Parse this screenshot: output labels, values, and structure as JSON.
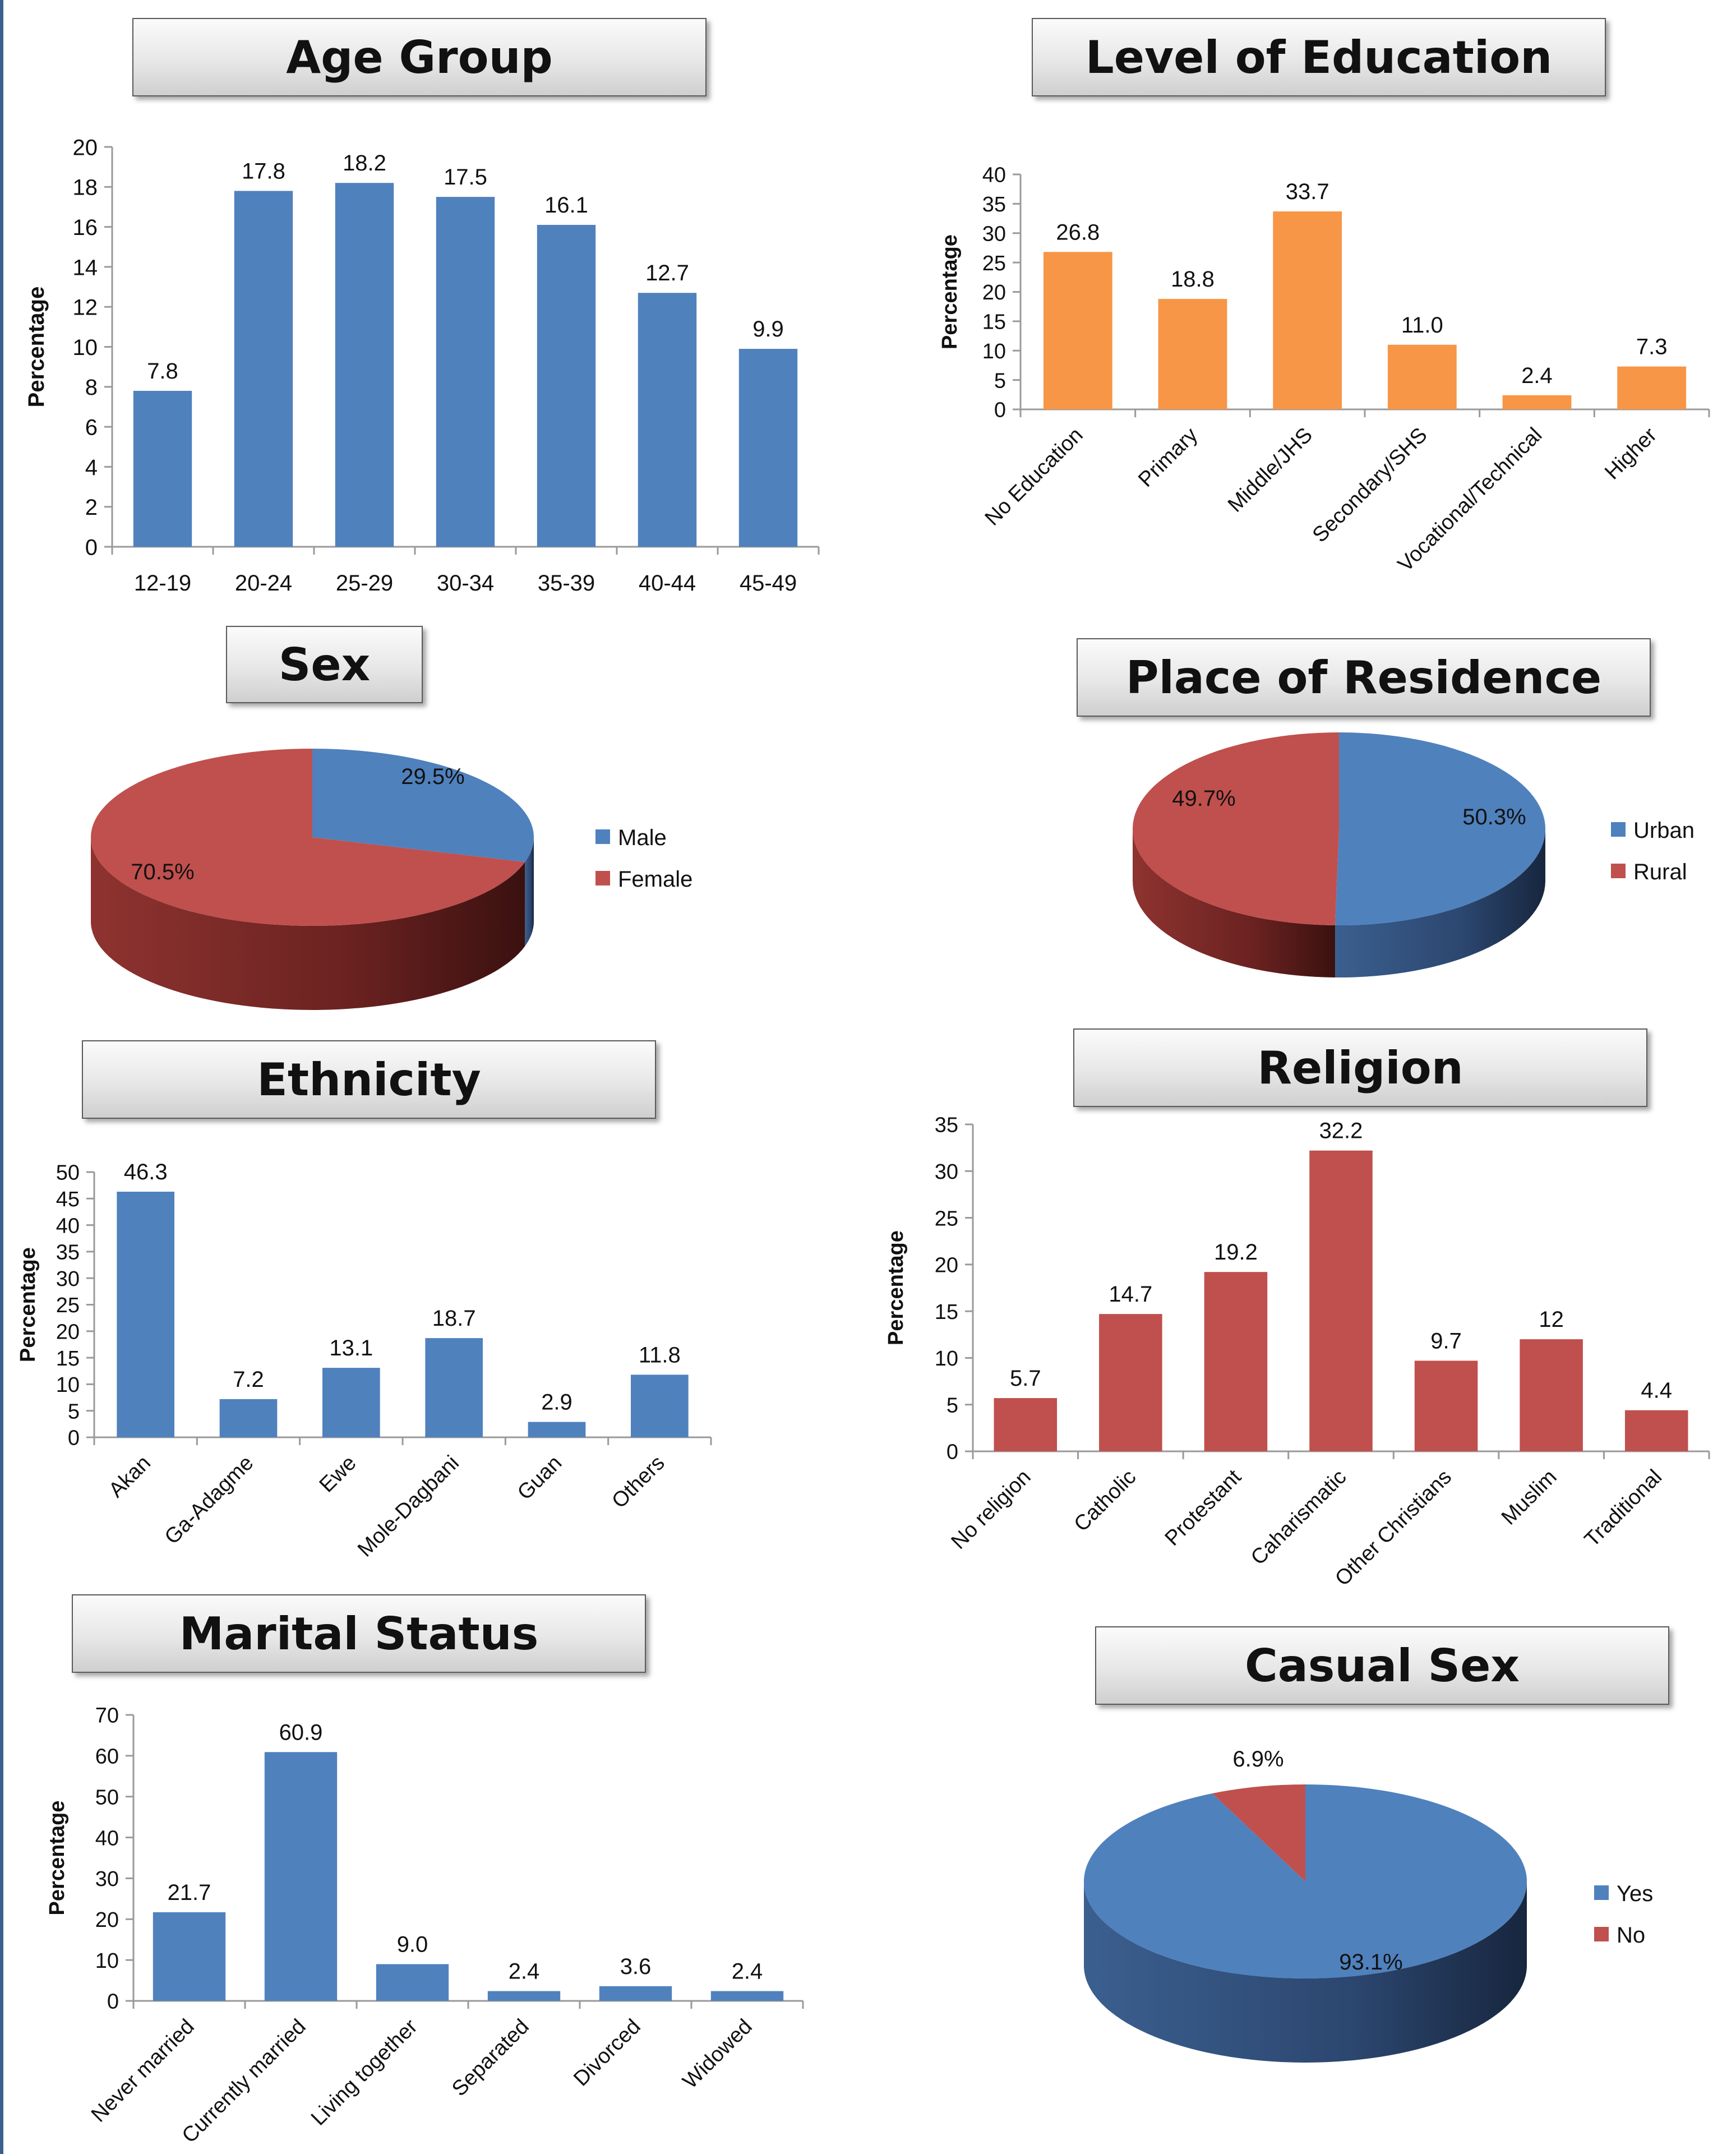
{
  "charts": {
    "age": {
      "title": "Age Group"
    },
    "education": {
      "title": "Level of Education"
    },
    "sex": {
      "title": "Sex"
    },
    "residence": {
      "title": "Place of Residence"
    },
    "ethnicity": {
      "title": "Ethnicity"
    },
    "religion": {
      "title": "Religion"
    },
    "marital": {
      "title": "Marital Status"
    },
    "casual": {
      "title": "Casual Sex"
    }
  },
  "chart_data": [
    {
      "id": "age",
      "type": "bar",
      "title": "Age Group",
      "categories": [
        "12-19",
        "20-24",
        "25-29",
        "30-34",
        "35-39",
        "40-44",
        "45-49"
      ],
      "values": [
        7.8,
        17.8,
        18.2,
        17.5,
        16.1,
        12.7,
        9.9
      ],
      "data_labels": [
        "7.8",
        "17.8",
        "18.2",
        "17.5",
        "16.1",
        "12.7",
        "9.9"
      ],
      "ylabel": "Percentage",
      "ylim": [
        0,
        20
      ],
      "ytick_step": 2,
      "color": "#4f81bd",
      "grid": false
    },
    {
      "id": "education",
      "type": "bar",
      "title": "Level of Education",
      "categories": [
        "No Education",
        "Primary",
        "Middle/JHS",
        "Secondary/SHS",
        "Vocational/Technical",
        "Higher"
      ],
      "values": [
        26.8,
        18.8,
        33.7,
        11.0,
        2.4,
        7.3
      ],
      "data_labels": [
        "26.8",
        "18.8",
        "33.7",
        "11.0",
        "2.4",
        "7.3"
      ],
      "ylabel": "Percentage",
      "ylim": [
        0,
        40
      ],
      "ytick_step": 5,
      "color": "#f79646",
      "grid": false
    },
    {
      "id": "sex",
      "type": "pie",
      "title": "Sex",
      "labels": [
        "Male",
        "Female"
      ],
      "values": [
        29.5,
        70.5
      ],
      "data_labels": [
        "29.5%",
        "70.5%"
      ],
      "colors": [
        "#4f81bd",
        "#c0504d"
      ],
      "legend": "right"
    },
    {
      "id": "residence",
      "type": "pie",
      "title": "Place of Residence",
      "labels": [
        "Urban",
        "Rural"
      ],
      "values": [
        50.3,
        49.7
      ],
      "data_labels": [
        "50.3%",
        "49.7%"
      ],
      "colors": [
        "#4f81bd",
        "#c0504d"
      ],
      "legend": "right"
    },
    {
      "id": "ethnicity",
      "type": "bar",
      "title": "Ethnicity",
      "categories": [
        "Akan",
        "Ga-Adagme",
        "Ewe",
        "Mole-Dagbani",
        "Guan",
        "Others"
      ],
      "values": [
        46.3,
        7.2,
        13.1,
        18.7,
        2.9,
        11.8
      ],
      "data_labels": [
        "46.3",
        "7.2",
        "13.1",
        "18.7",
        "2.9",
        "11.8"
      ],
      "ylabel": "Percentage",
      "ylim": [
        0,
        50
      ],
      "ytick_step": 5,
      "color": "#4f81bd",
      "grid": false
    },
    {
      "id": "religion",
      "type": "bar",
      "title": "Religion",
      "categories": [
        "No religion",
        "Catholic",
        "Protestant",
        "Caharismatic",
        "Other Christians",
        "Muslim",
        "Traditional"
      ],
      "values": [
        5.7,
        14.7,
        19.2,
        32.2,
        9.7,
        12,
        4.4
      ],
      "data_labels": [
        "5.7",
        "14.7",
        "19.2",
        "32.2",
        "9.7",
        "12",
        "4.4"
      ],
      "ylabel": "Percentage",
      "ylim": [
        0,
        35
      ],
      "ytick_step": 5,
      "color": "#c0504d",
      "grid": false
    },
    {
      "id": "marital",
      "type": "bar",
      "title": "Marital Status",
      "categories": [
        "Never married",
        "Currently married",
        "Living together",
        "Separated",
        "Divorced",
        "Widowed"
      ],
      "values": [
        21.7,
        60.9,
        9.0,
        2.4,
        3.6,
        2.4
      ],
      "data_labels": [
        "21.7",
        "60.9",
        "9.0",
        "2.4",
        "3.6",
        "2.4"
      ],
      "ylabel": "Percentage",
      "ylim": [
        0,
        70
      ],
      "ytick_step": 10,
      "color": "#4f81bd",
      "grid": false
    },
    {
      "id": "casual",
      "type": "pie",
      "title": "Casual Sex",
      "labels": [
        "Yes",
        "No"
      ],
      "values": [
        93.1,
        6.9
      ],
      "data_labels": [
        "93.1%",
        "6.9%"
      ],
      "colors": [
        "#4f81bd",
        "#c0504d"
      ],
      "legend": "right"
    }
  ]
}
